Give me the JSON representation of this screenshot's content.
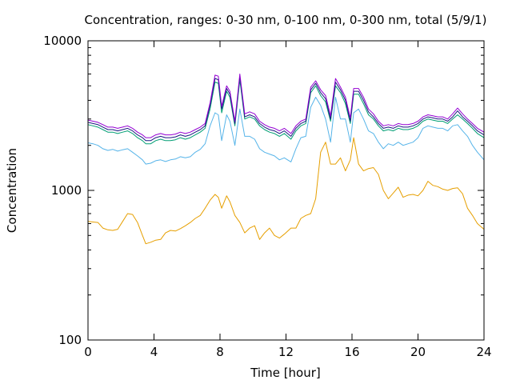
{
  "chart_data": {
    "type": "line",
    "title": "Concentration, ranges: 0-30 nm, 0-100 nm, 0-300 nm, total (5/9/1)",
    "xlabel": "Time [hour]",
    "ylabel": "Concentration",
    "xlim": [
      0,
      24
    ],
    "ylim": [
      100,
      10000
    ],
    "yscale": "log",
    "grid": false,
    "legend": "none",
    "x_ticks": [
      0,
      4,
      8,
      12,
      16,
      20,
      24
    ],
    "x_tick_labels": [
      "0",
      "4",
      "8",
      "12",
      "16",
      "20",
      "24"
    ],
    "y_ticks": [
      100,
      1000,
      10000
    ],
    "y_tick_labels": [
      "100",
      "1000",
      "10000"
    ],
    "series": [
      {
        "color": "#e69f00",
        "x": [
          0,
          0.3,
          0.6,
          0.9,
          1.2,
          1.5,
          1.8,
          2.1,
          2.4,
          2.7,
          3.0,
          3.3,
          3.5,
          3.8,
          4.1,
          4.4,
          4.7,
          5.0,
          5.3,
          5.6,
          5.9,
          6.2,
          6.5,
          6.8,
          7.1,
          7.4,
          7.7,
          7.9,
          8.1,
          8.4,
          8.6,
          8.9,
          9.2,
          9.5,
          9.8,
          10.1,
          10.4,
          10.7,
          11.0,
          11.3,
          11.6,
          11.9,
          12.3,
          12.6,
          12.9,
          13.2,
          13.5,
          13.8,
          14.1,
          14.4,
          14.7,
          15.0,
          15.3,
          15.6,
          15.9,
          16.1,
          16.4,
          16.7,
          17.0,
          17.3,
          17.6,
          17.9,
          18.2,
          18.5,
          18.8,
          19.1,
          19.4,
          19.7,
          20.0,
          20.3,
          20.6,
          20.9,
          21.2,
          21.5,
          21.8,
          22.1,
          22.4,
          22.7,
          23.0,
          23.3,
          23.6,
          24
        ],
        "values": [
          620,
          615,
          610,
          560,
          545,
          540,
          550,
          620,
          700,
          690,
          610,
          500,
          440,
          450,
          465,
          470,
          520,
          540,
          535,
          555,
          580,
          610,
          650,
          680,
          760,
          860,
          940,
          900,
          760,
          920,
          840,
          680,
          610,
          520,
          560,
          580,
          470,
          520,
          560,
          500,
          480,
          510,
          560,
          560,
          650,
          680,
          700,
          880,
          1800,
          2100,
          1500,
          1500,
          1650,
          1350,
          1600,
          2250,
          1500,
          1350,
          1400,
          1420,
          1280,
          1000,
          880,
          960,
          1050,
          900,
          930,
          940,
          920,
          1000,
          1150,
          1080,
          1060,
          1020,
          1000,
          1030,
          1040,
          950,
          760,
          680,
          600,
          550
        ]
      },
      {
        "color": "#56b4e9",
        "x": [
          0,
          0.3,
          0.6,
          0.9,
          1.2,
          1.5,
          1.8,
          2.1,
          2.4,
          2.7,
          3.0,
          3.3,
          3.5,
          3.8,
          4.1,
          4.4,
          4.7,
          5.0,
          5.3,
          5.6,
          5.9,
          6.2,
          6.5,
          6.8,
          7.1,
          7.4,
          7.7,
          7.9,
          8.1,
          8.4,
          8.6,
          8.9,
          9.2,
          9.5,
          9.8,
          10.1,
          10.4,
          10.7,
          11.0,
          11.3,
          11.6,
          11.9,
          12.3,
          12.6,
          12.9,
          13.2,
          13.5,
          13.8,
          14.1,
          14.4,
          14.7,
          15.0,
          15.3,
          15.6,
          15.9,
          16.1,
          16.4,
          16.7,
          17.0,
          17.3,
          17.6,
          17.9,
          18.2,
          18.5,
          18.8,
          19.1,
          19.4,
          19.7,
          20.0,
          20.3,
          20.6,
          20.9,
          21.2,
          21.5,
          21.8,
          22.1,
          22.4,
          22.7,
          23.0,
          23.3,
          23.6,
          24
        ],
        "values": [
          2080,
          2050,
          2000,
          1900,
          1850,
          1880,
          1830,
          1870,
          1900,
          1800,
          1700,
          1600,
          1500,
          1520,
          1580,
          1600,
          1560,
          1600,
          1620,
          1680,
          1650,
          1680,
          1800,
          1880,
          2050,
          2700,
          3300,
          3200,
          2150,
          3200,
          2900,
          2000,
          3500,
          2300,
          2300,
          2200,
          1900,
          1800,
          1750,
          1700,
          1600,
          1650,
          1550,
          1900,
          2250,
          2300,
          3600,
          4200,
          3700,
          3000,
          2100,
          4200,
          3000,
          3000,
          2100,
          3300,
          3500,
          3000,
          2500,
          2400,
          2100,
          1900,
          2050,
          2000,
          2100,
          2000,
          2050,
          2100,
          2250,
          2600,
          2700,
          2650,
          2600,
          2600,
          2500,
          2700,
          2750,
          2500,
          2300,
          2000,
          1800,
          1600
        ]
      },
      {
        "color": "#009e73",
        "x": [
          0,
          0.3,
          0.6,
          0.9,
          1.2,
          1.5,
          1.8,
          2.1,
          2.4,
          2.7,
          3.0,
          3.3,
          3.5,
          3.8,
          4.1,
          4.4,
          4.7,
          5.0,
          5.3,
          5.6,
          5.9,
          6.2,
          6.5,
          6.8,
          7.1,
          7.4,
          7.7,
          7.9,
          8.1,
          8.4,
          8.6,
          8.9,
          9.2,
          9.5,
          9.8,
          10.1,
          10.4,
          10.7,
          11.0,
          11.3,
          11.6,
          11.9,
          12.3,
          12.6,
          12.9,
          13.2,
          13.5,
          13.8,
          14.1,
          14.4,
          14.7,
          15.0,
          15.3,
          15.6,
          15.9,
          16.1,
          16.4,
          16.7,
          17.0,
          17.3,
          17.6,
          17.9,
          18.2,
          18.5,
          18.8,
          19.1,
          19.4,
          19.7,
          20.0,
          20.3,
          20.6,
          20.9,
          21.2,
          21.5,
          21.8,
          22.1,
          22.4,
          22.7,
          23.0,
          23.3,
          23.6,
          24
        ],
        "values": [
          2750,
          2700,
          2650,
          2550,
          2450,
          2450,
          2400,
          2450,
          2500,
          2400,
          2250,
          2150,
          2050,
          2050,
          2150,
          2200,
          2150,
          2150,
          2180,
          2250,
          2200,
          2250,
          2350,
          2450,
          2600,
          3500,
          5300,
          5200,
          3300,
          4600,
          4200,
          2700,
          5500,
          3000,
          3100,
          3000,
          2700,
          2550,
          2450,
          2400,
          2300,
          2400,
          2200,
          2500,
          2700,
          2800,
          4500,
          5000,
          4300,
          3900,
          2900,
          5000,
          4500,
          3800,
          2800,
          4400,
          4400,
          3800,
          3200,
          3000,
          2700,
          2500,
          2550,
          2500,
          2600,
          2550,
          2550,
          2600,
          2700,
          2900,
          3000,
          2950,
          2900,
          2900,
          2800,
          3000,
          3200,
          3000,
          2800,
          2600,
          2400,
          2250
        ]
      },
      {
        "color": "#1a1a80",
        "x": [
          0,
          0.3,
          0.6,
          0.9,
          1.2,
          1.5,
          1.8,
          2.1,
          2.4,
          2.7,
          3.0,
          3.3,
          3.5,
          3.8,
          4.1,
          4.4,
          4.7,
          5.0,
          5.3,
          5.6,
          5.9,
          6.2,
          6.5,
          6.8,
          7.1,
          7.4,
          7.7,
          7.9,
          8.1,
          8.4,
          8.6,
          8.9,
          9.2,
          9.5,
          9.8,
          10.1,
          10.4,
          10.7,
          11.0,
          11.3,
          11.6,
          11.9,
          12.3,
          12.6,
          12.9,
          13.2,
          13.5,
          13.8,
          14.1,
          14.4,
          14.7,
          15.0,
          15.3,
          15.6,
          15.9,
          16.1,
          16.4,
          16.7,
          17.0,
          17.3,
          17.6,
          17.9,
          18.2,
          18.5,
          18.8,
          19.1,
          19.4,
          19.7,
          20.0,
          20.3,
          20.6,
          20.9,
          21.2,
          21.5,
          21.8,
          22.1,
          22.4,
          22.7,
          23.0,
          23.3,
          23.6,
          24
        ],
        "values": [
          2850,
          2800,
          2750,
          2650,
          2550,
          2550,
          2500,
          2550,
          2600,
          2500,
          2350,
          2250,
          2150,
          2150,
          2250,
          2300,
          2250,
          2250,
          2280,
          2350,
          2300,
          2350,
          2450,
          2550,
          2700,
          3700,
          5600,
          5500,
          3500,
          4800,
          4400,
          2800,
          5800,
          3100,
          3200,
          3100,
          2800,
          2650,
          2550,
          2500,
          2400,
          2500,
          2300,
          2600,
          2800,
          2900,
          4700,
          5200,
          4500,
          4100,
          3000,
          5300,
          4700,
          4000,
          2900,
          4600,
          4600,
          4000,
          3350,
          3100,
          2800,
          2600,
          2650,
          2600,
          2700,
          2650,
          2650,
          2700,
          2800,
          3000,
          3100,
          3050,
          3000,
          3000,
          2900,
          3100,
          3400,
          3100,
          2900,
          2700,
          2500,
          2350
        ]
      },
      {
        "color": "#9400d3",
        "x": [
          0,
          0.3,
          0.6,
          0.9,
          1.2,
          1.5,
          1.8,
          2.1,
          2.4,
          2.7,
          3.0,
          3.3,
          3.5,
          3.8,
          4.1,
          4.4,
          4.7,
          5.0,
          5.3,
          5.6,
          5.9,
          6.2,
          6.5,
          6.8,
          7.1,
          7.4,
          7.7,
          7.9,
          8.1,
          8.4,
          8.6,
          8.9,
          9.2,
          9.5,
          9.8,
          10.1,
          10.4,
          10.7,
          11.0,
          11.3,
          11.6,
          11.9,
          12.3,
          12.6,
          12.9,
          13.2,
          13.5,
          13.8,
          14.1,
          14.4,
          14.7,
          15.0,
          15.3,
          15.6,
          15.9,
          16.1,
          16.4,
          16.7,
          17.0,
          17.3,
          17.6,
          17.9,
          18.2,
          18.5,
          18.8,
          19.1,
          19.4,
          19.7,
          20.0,
          20.3,
          20.6,
          20.9,
          21.2,
          21.5,
          21.8,
          22.1,
          22.4,
          22.7,
          23.0,
          23.3,
          23.6,
          24
        ],
        "values": [
          2950,
          2900,
          2850,
          2750,
          2650,
          2650,
          2600,
          2650,
          2700,
          2600,
          2450,
          2350,
          2250,
          2250,
          2350,
          2400,
          2350,
          2350,
          2380,
          2450,
          2400,
          2450,
          2550,
          2650,
          2800,
          3850,
          5900,
          5800,
          3650,
          5000,
          4600,
          2900,
          6000,
          3250,
          3350,
          3250,
          2900,
          2750,
          2650,
          2600,
          2500,
          2600,
          2400,
          2700,
          2900,
          3000,
          4900,
          5400,
          4700,
          4300,
          3150,
          5600,
          4900,
          4200,
          3050,
          4800,
          4800,
          4200,
          3500,
          3250,
          2900,
          2700,
          2750,
          2700,
          2800,
          2750,
          2750,
          2800,
          2900,
          3100,
          3200,
          3150,
          3100,
          3100,
          3000,
          3250,
          3550,
          3250,
          3000,
          2800,
          2600,
          2450
        ]
      }
    ]
  }
}
